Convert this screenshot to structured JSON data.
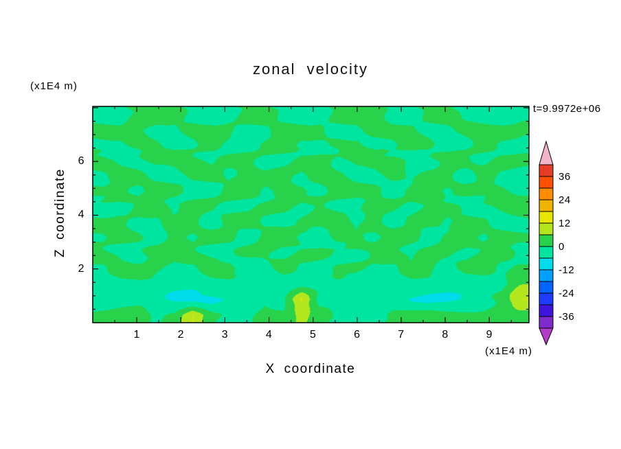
{
  "figure": {
    "background": "#ffffff",
    "frame_color": "#000000",
    "text_color": "#000000"
  },
  "chart_data": {
    "type": "heatmap",
    "title": "zonal velocity",
    "time_label": "t=9.9972e+06",
    "xlabel": "X coordinate",
    "x_units": "(x1E4 m)",
    "ylabel": "Z coordinate",
    "y_units": "(x1E4 m)",
    "xlim": [
      0,
      9.9
    ],
    "ylim": [
      0,
      8.05
    ],
    "x_ticks": [
      1,
      2,
      3,
      4,
      5,
      6,
      7,
      8,
      9
    ],
    "y_ticks": [
      2,
      4,
      6
    ],
    "x_minor_step": 0.5,
    "y_minor_step": 0.5,
    "colorbar": {
      "levels": [
        -42,
        -36,
        -30,
        -24,
        -18,
        -12,
        -6,
        0,
        6,
        12,
        18,
        24,
        30,
        36,
        42
      ],
      "colors": [
        "#7d2bcd",
        "#3c14dc",
        "#1e3cff",
        "#0064ff",
        "#00a0ff",
        "#00dcec",
        "#00e6a0",
        "#28d24b",
        "#b4e61e",
        "#e6e600",
        "#f0b400",
        "#ff8c00",
        "#ff5000",
        "#e63c28"
      ],
      "above_color": "#f2b4c8",
      "below_color": "#b43cc8",
      "tick_values": [
        36,
        24,
        12,
        0,
        -12,
        -24,
        -36
      ],
      "tick_labels": [
        "36",
        "24",
        "12",
        "0",
        "-12",
        "-24",
        "-36"
      ]
    },
    "grid": {
      "note": "approximate zonal velocity values on a coarse grid; rows listed top-to-bottom spanning ylim, columns left-to-right spanning xlim; units match colorbar",
      "rows": [
        [
          -2,
          -2,
          2,
          2,
          2,
          -2,
          -2,
          -2,
          2,
          2,
          -2,
          -2,
          -2,
          2,
          2,
          2,
          -2,
          -2,
          2,
          2,
          -2,
          -2,
          -2,
          -2
        ],
        [
          2,
          2,
          2,
          -2,
          -2,
          2,
          2,
          2,
          -2,
          -2,
          2,
          2,
          2,
          -2,
          -2,
          2,
          2,
          2,
          -2,
          -2,
          2,
          2,
          2,
          2
        ],
        [
          -2,
          -2,
          2,
          2,
          -2,
          -2,
          2,
          -2,
          -2,
          2,
          2,
          -2,
          -2,
          2,
          2,
          -2,
          -2,
          2,
          2,
          -2,
          -2,
          2,
          -2,
          -2
        ],
        [
          2,
          -2,
          -2,
          2,
          2,
          2,
          -2,
          2,
          2,
          -2,
          -2,
          2,
          2,
          -2,
          2,
          2,
          2,
          -2,
          -2,
          2,
          2,
          -2,
          2,
          2
        ],
        [
          -2,
          2,
          2,
          -2,
          -2,
          2,
          2,
          -2,
          2,
          2,
          2,
          -2,
          2,
          2,
          -2,
          -2,
          2,
          -2,
          2,
          2,
          -2,
          2,
          -2,
          -2
        ],
        [
          2,
          2,
          -2,
          2,
          2,
          -2,
          -2,
          2,
          2,
          -2,
          2,
          2,
          -2,
          2,
          2,
          2,
          -2,
          2,
          2,
          -2,
          2,
          2,
          2,
          -2
        ],
        [
          -2,
          -2,
          2,
          2,
          -2,
          2,
          2,
          -2,
          -2,
          2,
          2,
          -2,
          2,
          -2,
          -2,
          2,
          2,
          -2,
          2,
          2,
          -2,
          -2,
          2,
          2
        ],
        [
          2,
          2,
          -2,
          -2,
          2,
          2,
          -2,
          2,
          2,
          -2,
          -2,
          2,
          2,
          2,
          -2,
          2,
          -2,
          2,
          2,
          -2,
          2,
          2,
          -2,
          -2
        ],
        [
          -2,
          2,
          2,
          -2,
          2,
          -2,
          2,
          2,
          -2,
          2,
          2,
          -2,
          -2,
          2,
          2,
          -2,
          2,
          2,
          -2,
          2,
          2,
          -2,
          2,
          2
        ],
        [
          2,
          -2,
          -2,
          2,
          2,
          2,
          -2,
          -2,
          2,
          2,
          -2,
          2,
          2,
          -2,
          -2,
          2,
          2,
          -2,
          2,
          2,
          -2,
          2,
          2,
          -2
        ],
        [
          -2,
          2,
          2,
          2,
          -2,
          -2,
          2,
          2,
          -2,
          -2,
          2,
          -2,
          -2,
          2,
          2,
          -2,
          -2,
          2,
          2,
          -2,
          2,
          2,
          -2,
          2
        ],
        [
          -2,
          -2,
          -2,
          -2,
          -3,
          -3,
          -2,
          -2,
          -2,
          -2,
          -2,
          -2,
          -2,
          -2,
          -2,
          -2,
          -2,
          -2,
          -3,
          -3,
          -2,
          -2,
          -2,
          5
        ],
        [
          -3,
          -2,
          -2,
          -4,
          -8,
          -9,
          -8,
          -4,
          -2,
          -2,
          -2,
          13,
          -2,
          -2,
          -2,
          -2,
          -3,
          -6,
          -8,
          -8,
          -6,
          -3,
          2,
          13
        ],
        [
          2,
          2,
          2,
          -2,
          2,
          13,
          2,
          -2,
          -2,
          2,
          2,
          9,
          2,
          -2,
          -2,
          -2,
          2,
          2,
          2,
          2,
          2,
          2,
          2,
          2
        ]
      ]
    }
  }
}
